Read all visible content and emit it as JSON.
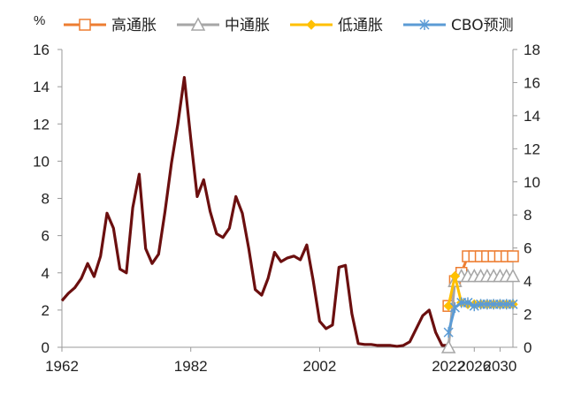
{
  "chart_data": {
    "type": "line",
    "unit": "%",
    "legend_position": "top",
    "grid": false,
    "x_ticks": [
      "1962",
      "1982",
      "2002",
      "2022",
      "2026",
      "2030"
    ],
    "y_left": {
      "ticks": [
        "0",
        "2",
        "4",
        "6",
        "8",
        "10",
        "12",
        "14",
        "16"
      ],
      "range": [
        0,
        16
      ]
    },
    "y_right": {
      "ticks": [
        "0",
        "2",
        "4",
        "6",
        "8",
        "10",
        "12",
        "14",
        "16",
        "18"
      ],
      "range": [
        0,
        18
      ]
    },
    "history": {
      "color": "#6b0f0f",
      "x": [
        1962,
        1963,
        1964,
        1965,
        1966,
        1967,
        1968,
        1969,
        1970,
        1971,
        1972,
        1973,
        1974,
        1975,
        1976,
        1977,
        1978,
        1979,
        1980,
        1981,
        1982,
        1983,
        1984,
        1985,
        1986,
        1987,
        1988,
        1989,
        1990,
        1991,
        1992,
        1993,
        1994,
        1995,
        1996,
        1997,
        1998,
        1999,
        2000,
        2001,
        2002,
        2003,
        2004,
        2005,
        2006,
        2007,
        2008,
        2009,
        2010,
        2011,
        2012,
        2013,
        2014,
        2015,
        2016,
        2017,
        2018,
        2019,
        2020,
        2021,
        2022
      ],
      "y": [
        2.5,
        2.9,
        3.2,
        3.7,
        4.5,
        3.8,
        4.9,
        7.2,
        6.4,
        4.2,
        4.0,
        7.5,
        9.3,
        5.3,
        4.5,
        5.0,
        7.3,
        9.9,
        12.0,
        14.5,
        11.2,
        8.1,
        9.0,
        7.3,
        6.1,
        5.9,
        6.4,
        8.1,
        7.2,
        5.3,
        3.1,
        2.8,
        3.7,
        5.1,
        4.6,
        4.8,
        4.9,
        4.7,
        5.5,
        3.6,
        1.4,
        1.0,
        1.2,
        4.3,
        4.4,
        1.8,
        0.2,
        0.15,
        0.15,
        0.1,
        0.1,
        0.1,
        0.05,
        0.1,
        0.3,
        1.0,
        1.7,
        2.0,
        0.8,
        0.1,
        0.1
      ]
    },
    "scenario_x": [
      2022,
      2023,
      2024,
      2025,
      2026,
      2027,
      2028,
      2029,
      2030,
      2031,
      2032
    ],
    "series": [
      {
        "name": "高通胀",
        "color": "#ed7d31",
        "marker": "square",
        "values": [
          2.5,
          4.0,
          4.5,
          5.5,
          5.5,
          5.5,
          5.5,
          5.5,
          5.5,
          5.5,
          5.5
        ]
      },
      {
        "name": "中通胀",
        "color": "#a6a6a6",
        "marker": "triangle",
        "values": [
          0.0,
          4.0,
          4.3,
          4.3,
          4.3,
          4.3,
          4.3,
          4.3,
          4.3,
          4.3,
          4.3
        ]
      },
      {
        "name": "低通胀",
        "color": "#ffc000",
        "marker": "diamond",
        "values": [
          2.5,
          4.3,
          2.7,
          2.6,
          2.6,
          2.6,
          2.6,
          2.6,
          2.6,
          2.6,
          2.6
        ]
      },
      {
        "name": "CBO预测",
        "color": "#5b9bd5",
        "marker": "asterisk",
        "values": [
          0.9,
          2.4,
          2.7,
          2.7,
          2.5,
          2.6,
          2.6,
          2.6,
          2.6,
          2.6,
          2.6
        ]
      }
    ]
  }
}
